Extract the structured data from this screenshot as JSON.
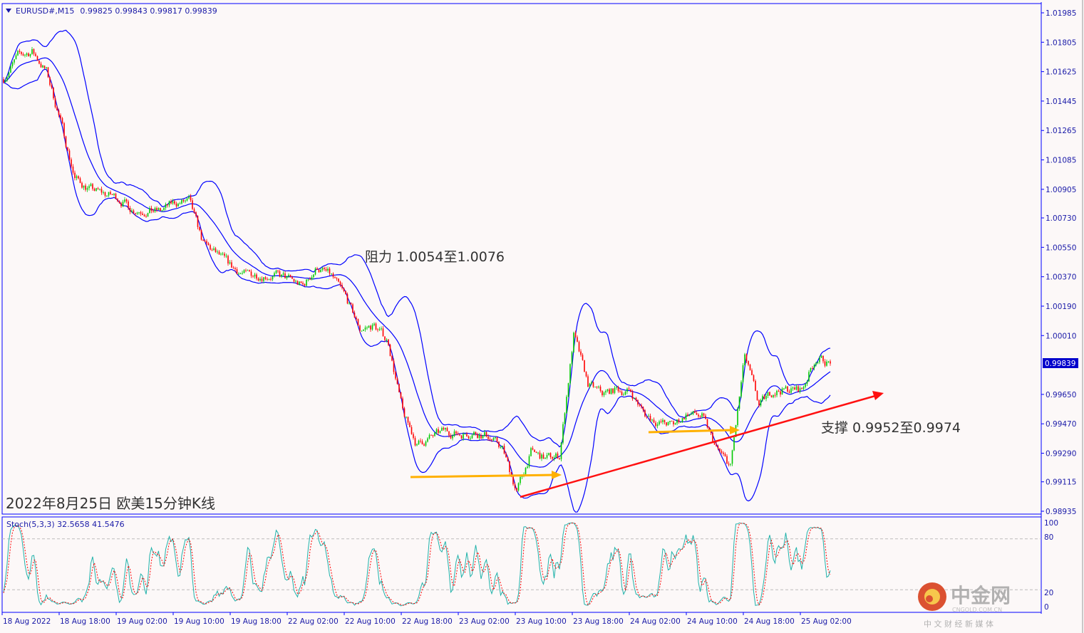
{
  "header": {
    "symbol": "EURUSD#,M15",
    "ohlc": "0.99825 0.99843 0.99817 0.99839"
  },
  "indicator": {
    "label": "Stoch(5,3,3) 32.5658 41.5476",
    "levels": [
      "100",
      "80",
      "20",
      "0"
    ]
  },
  "annotations": {
    "resistance": "阻力 1.0054至1.0076",
    "support": "支撑 0.9952至0.9974",
    "caption": "2022年8月25日 欧美15分钟K线"
  },
  "logo": {
    "name": "中金网",
    "domain": "CNGOLD.COM.CN",
    "slogan": "中 文 财 经 新 媒 体"
  },
  "colors": {
    "frame": "#0000ff",
    "bull": "#00c800",
    "bear": "#ff0000",
    "bands": "#0000ff",
    "stoch_main": "#20b2aa",
    "stoch_signal": "#ff0000",
    "arrow_orange": "#ffb000",
    "trend_red": "#ff1010"
  },
  "chart_data": {
    "type": "candlestick",
    "title": "EURUSD#,M15",
    "overlays": [
      "Bollinger Bands"
    ],
    "current_price": "0.99839",
    "y_ticks": [
      "1.01985",
      "1.01805",
      "1.01625",
      "1.01445",
      "1.01265",
      "1.01085",
      "1.00905",
      "1.00730",
      "1.00550",
      "1.00370",
      "1.00190",
      "1.00010",
      "0.99650",
      "0.99470",
      "0.99290",
      "0.99115",
      "0.98935"
    ],
    "ylim": [
      0.98935,
      1.01985
    ],
    "x_ticks": [
      "18 Aug 2022",
      "18 Aug 18:00",
      "19 Aug 02:00",
      "19 Aug 10:00",
      "19 Aug 18:00",
      "22 Aug 02:00",
      "22 Aug 10:00",
      "22 Aug 18:00",
      "23 Aug 02:00",
      "23 Aug 10:00",
      "23 Aug 18:00",
      "24 Aug 02:00",
      "24 Aug 10:00",
      "24 Aug 18:00",
      "25 Aug 02:00"
    ],
    "close_every_2h": [
      1.01584,
      1.01715,
      1.0175,
      1.01627,
      1.01322,
      1.00973,
      1.00908,
      1.00878,
      1.00856,
      1.00786,
      1.00777,
      1.00769,
      1.00821,
      1.0083,
      1.00572,
      1.00503,
      1.00428,
      1.00381,
      1.00385,
      1.00381,
      1.00354,
      1.00311,
      1.00428,
      1.00372,
      1.00241,
      1.00049,
      1.00071,
      0.99971,
      0.99535,
      0.99343,
      0.99386,
      0.99426,
      0.99408,
      0.99421,
      0.99395,
      0.99317,
      0.99055,
      0.99295,
      0.99256,
      0.99273,
      1.00014,
      0.99709,
      0.99652,
      0.99679,
      0.99665,
      0.99526,
      0.99478,
      0.99461,
      0.99535,
      0.99513,
      0.99317,
      0.99208,
      0.99883,
      0.99578,
      0.99674,
      0.99679,
      0.99679,
      0.99875,
      0.99839
    ],
    "stoch_ylim": [
      0,
      100
    ],
    "stoch_levels": [
      20,
      80
    ]
  }
}
